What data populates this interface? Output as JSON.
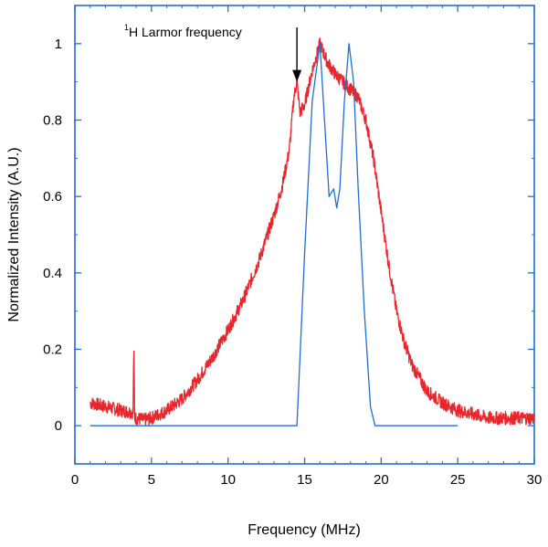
{
  "chart_data": {
    "type": "line",
    "xlabel": "Frequency (MHz)",
    "ylabel": "Normalized Intensity (A.U.)",
    "xlim": [
      0,
      30
    ],
    "ylim": [
      -0.1,
      1.1
    ],
    "xticks": [
      "0",
      "5",
      "10",
      "15",
      "20",
      "25",
      "30"
    ],
    "yticks": [
      "0",
      "0.2",
      "0.4",
      "0.6",
      "0.8",
      "1"
    ],
    "grid": false,
    "legend": "none",
    "annotation": {
      "sup": "1",
      "text": "H Larmor frequency",
      "x": 14.5,
      "y": 0.9
    },
    "series": [
      {
        "color": "#e8262b",
        "noisy": true,
        "x": [
          1.0,
          2.0,
          3.0,
          3.8,
          3.85,
          3.9,
          4.0,
          4.5,
          5.0,
          6.0,
          7.0,
          8.0,
          9.0,
          10.0,
          11.0,
          12.0,
          13.0,
          13.5,
          14.0,
          14.3,
          14.5,
          14.7,
          15.0,
          15.5,
          16.0,
          16.5,
          17.0,
          17.5,
          18.0,
          18.5,
          19.0,
          19.5,
          20.0,
          20.5,
          21.0,
          21.5,
          22.0,
          23.0,
          24.0,
          25.0,
          26.0,
          27.0,
          28.0,
          29.0,
          30.0
        ],
        "y": [
          0.06,
          0.05,
          0.04,
          0.035,
          0.22,
          0.02,
          0.02,
          0.015,
          0.02,
          0.04,
          0.07,
          0.12,
          0.18,
          0.25,
          0.33,
          0.43,
          0.55,
          0.62,
          0.72,
          0.86,
          0.9,
          0.82,
          0.84,
          0.93,
          1.0,
          0.95,
          0.92,
          0.9,
          0.88,
          0.86,
          0.8,
          0.7,
          0.56,
          0.42,
          0.3,
          0.22,
          0.16,
          0.09,
          0.06,
          0.04,
          0.03,
          0.02,
          0.02,
          0.02,
          0.02
        ]
      },
      {
        "color": "#1f6fd1",
        "noisy": false,
        "x": [
          1.0,
          14.0,
          14.5,
          15.0,
          15.5,
          16.0,
          16.3,
          16.6,
          16.9,
          17.1,
          17.3,
          17.6,
          17.9,
          18.2,
          18.5,
          18.9,
          19.3,
          19.6,
          19.8,
          20.0,
          25.0
        ],
        "y": [
          0.0,
          0.0,
          0.0,
          0.45,
          0.85,
          1.0,
          0.8,
          0.6,
          0.62,
          0.57,
          0.62,
          0.85,
          1.0,
          0.9,
          0.62,
          0.3,
          0.05,
          0.0,
          0.0,
          0.0,
          0.0
        ]
      }
    ]
  }
}
